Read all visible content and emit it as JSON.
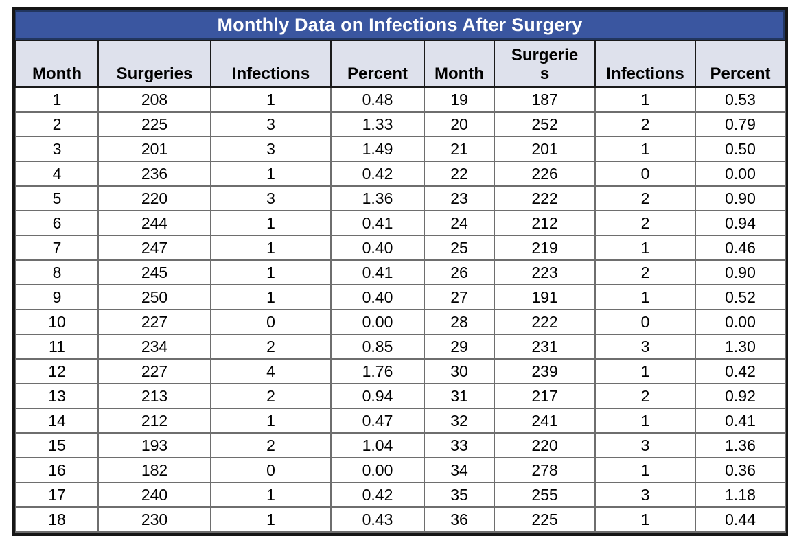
{
  "table": {
    "title": "Monthly Data on Infections After Surgery",
    "title_bg": "#3a56a0",
    "title_text_color": "#ffffff",
    "header_bg": "#dee1ec"
  },
  "chart_data": {
    "type": "table",
    "title": "Monthly Data on Infections After Surgery",
    "columns": [
      "Month",
      "Surgeries",
      "Infections",
      "Percent",
      "Month",
      "Surgerie\ns",
      "Infections",
      "Percent"
    ],
    "rows": [
      [
        "1",
        "208",
        "1",
        "0.48",
        "19",
        "187",
        "1",
        "0.53"
      ],
      [
        "2",
        "225",
        "3",
        "1.33",
        "20",
        "252",
        "2",
        "0.79"
      ],
      [
        "3",
        "201",
        "3",
        "1.49",
        "21",
        "201",
        "1",
        "0.50"
      ],
      [
        "4",
        "236",
        "1",
        "0.42",
        "22",
        "226",
        "0",
        "0.00"
      ],
      [
        "5",
        "220",
        "3",
        "1.36",
        "23",
        "222",
        "2",
        "0.90"
      ],
      [
        "6",
        "244",
        "1",
        "0.41",
        "24",
        "212",
        "2",
        "0.94"
      ],
      [
        "7",
        "247",
        "1",
        "0.40",
        "25",
        "219",
        "1",
        "0.46"
      ],
      [
        "8",
        "245",
        "1",
        "0.41",
        "26",
        "223",
        "2",
        "0.90"
      ],
      [
        "9",
        "250",
        "1",
        "0.40",
        "27",
        "191",
        "1",
        "0.52"
      ],
      [
        "10",
        "227",
        "0",
        "0.00",
        "28",
        "222",
        "0",
        "0.00"
      ],
      [
        "11",
        "234",
        "2",
        "0.85",
        "29",
        "231",
        "3",
        "1.30"
      ],
      [
        "12",
        "227",
        "4",
        "1.76",
        "30",
        "239",
        "1",
        "0.42"
      ],
      [
        "13",
        "213",
        "2",
        "0.94",
        "31",
        "217",
        "2",
        "0.92"
      ],
      [
        "14",
        "212",
        "1",
        "0.47",
        "32",
        "241",
        "1",
        "0.41"
      ],
      [
        "15",
        "193",
        "2",
        "1.04",
        "33",
        "220",
        "3",
        "1.36"
      ],
      [
        "16",
        "182",
        "0",
        "0.00",
        "34",
        "278",
        "1",
        "0.36"
      ],
      [
        "17",
        "240",
        "1",
        "0.42",
        "35",
        "255",
        "3",
        "1.18"
      ],
      [
        "18",
        "230",
        "1",
        "0.43",
        "36",
        "225",
        "1",
        "0.44"
      ]
    ]
  }
}
